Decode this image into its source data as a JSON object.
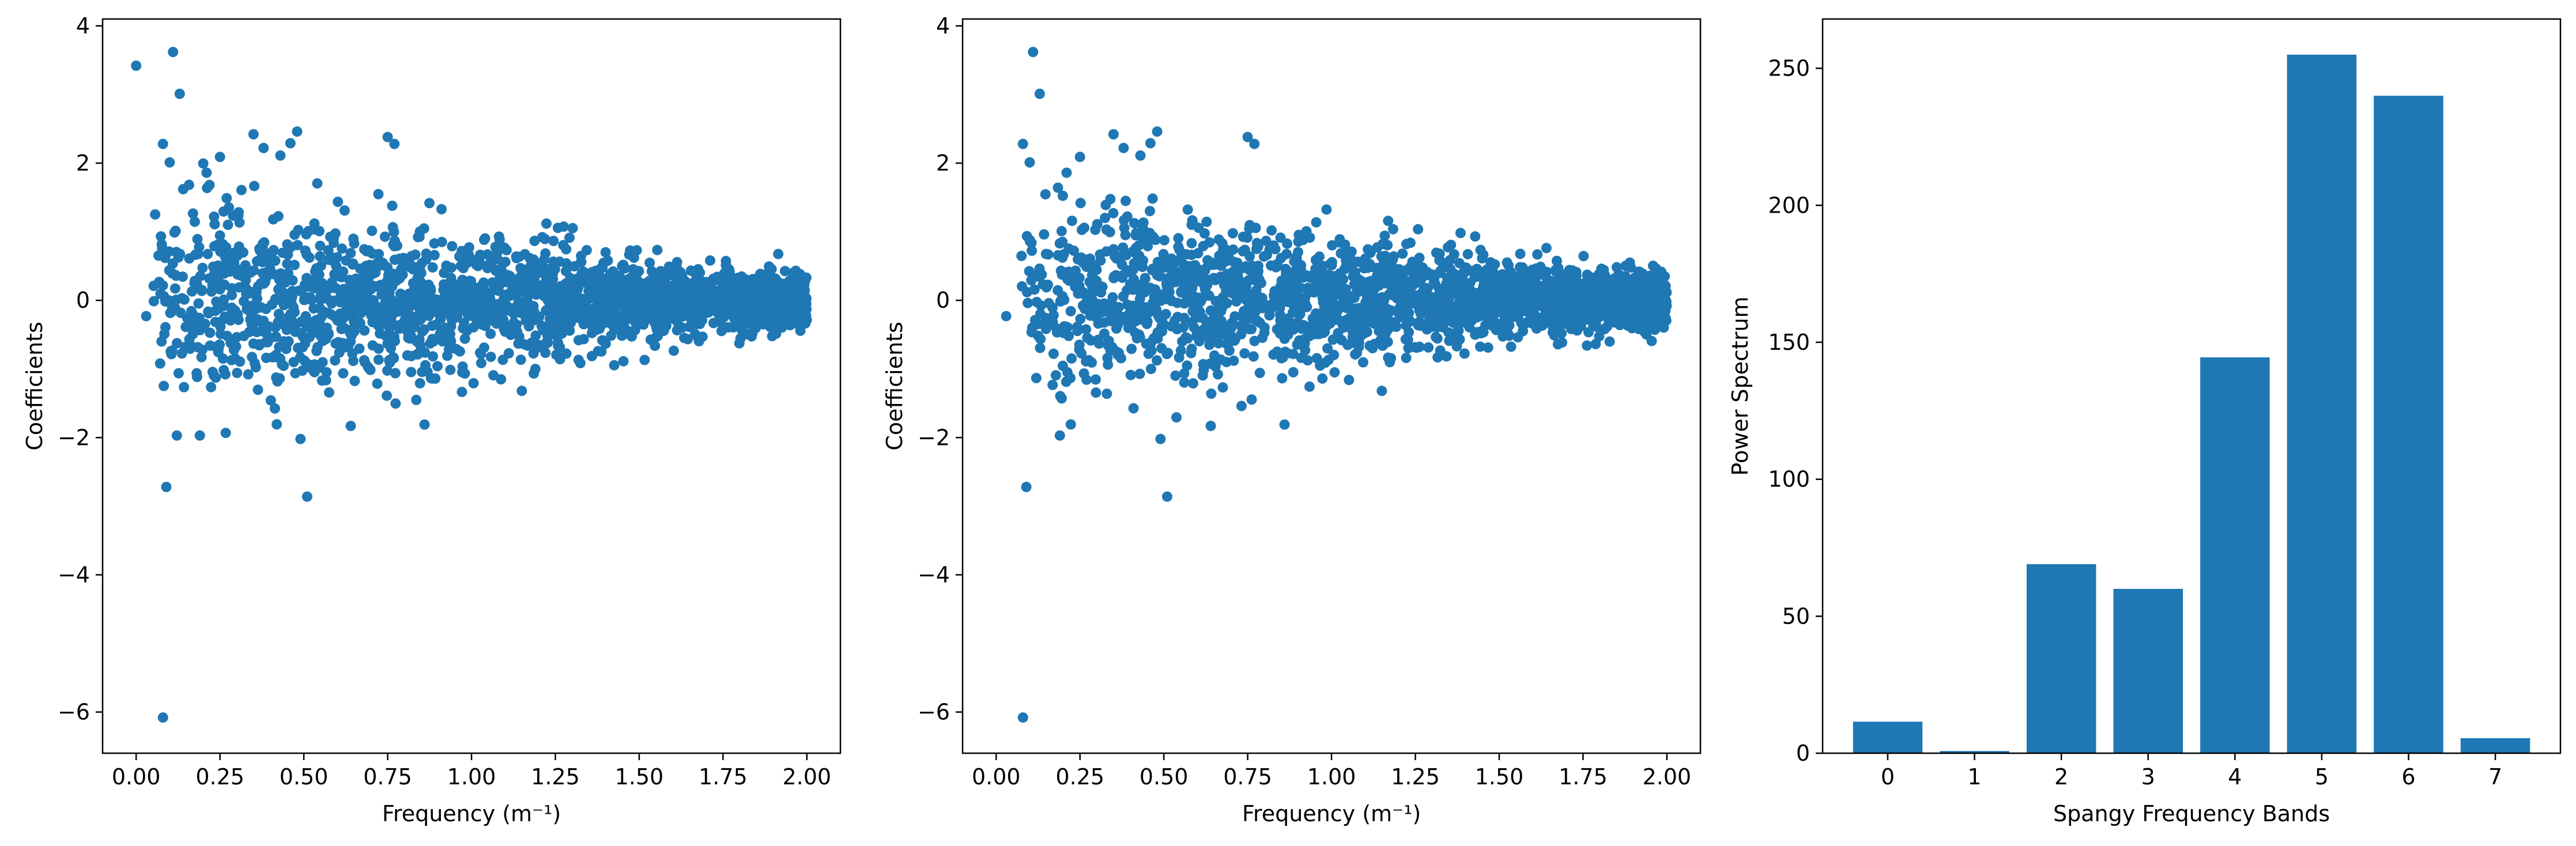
{
  "chart_data": [
    {
      "type": "scatter",
      "xlabel": "Frequency (m⁻¹)",
      "ylabel": "Coefficients",
      "xlim": [
        -0.1,
        2.1
      ],
      "ylim": [
        -6.6,
        4.1
      ],
      "xticks": [
        "0.00",
        "0.25",
        "0.50",
        "0.75",
        "1.00",
        "1.25",
        "1.50",
        "1.75",
        "2.00"
      ],
      "yticks": [
        "−6",
        "−4",
        "−2",
        "0",
        "2",
        "4"
      ],
      "color": "#1f77b4",
      "outliers": [
        [
          0.0,
          3.42
        ],
        [
          0.11,
          3.62
        ],
        [
          0.13,
          3.01
        ],
        [
          0.08,
          2.28
        ],
        [
          0.1,
          2.01
        ],
        [
          0.35,
          2.42
        ],
        [
          0.48,
          2.46
        ],
        [
          0.75,
          2.38
        ],
        [
          0.77,
          2.28
        ],
        [
          0.09,
          -2.72
        ],
        [
          0.51,
          -2.86
        ],
        [
          0.08,
          -6.08
        ],
        [
          0.38,
          2.22
        ],
        [
          0.43,
          2.11
        ],
        [
          0.21,
          1.86
        ],
        [
          0.03,
          -0.23
        ],
        [
          0.19,
          -1.97
        ],
        [
          0.64,
          -1.83
        ],
        [
          0.86,
          -1.81
        ],
        [
          0.49,
          -2.02
        ],
        [
          1.15,
          -1.32
        ],
        [
          0.25,
          2.09
        ],
        [
          0.46,
          2.29
        ]
      ],
      "trend": {
        "x_range": [
          0.0,
          2.0
        ],
        "spread_at_0.1": 1.6,
        "spread_at_2.0": 0.35,
        "point_count": 2000
      }
    },
    {
      "type": "scatter",
      "xlabel": "Frequency (m⁻¹)",
      "ylabel": "Coefficients",
      "xlim": [
        -0.1,
        2.1
      ],
      "ylim": [
        -6.6,
        4.1
      ],
      "xticks": [
        "0.00",
        "0.25",
        "0.50",
        "0.75",
        "1.00",
        "1.25",
        "1.50",
        "1.75",
        "2.00"
      ],
      "yticks": [
        "−6",
        "−4",
        "−2",
        "0",
        "2",
        "4"
      ],
      "color": "#1f77b4",
      "outliers": [
        [
          0.03,
          -0.23
        ],
        [
          0.11,
          3.62
        ],
        [
          0.13,
          3.01
        ],
        [
          0.08,
          2.28
        ],
        [
          0.1,
          2.01
        ],
        [
          0.35,
          2.42
        ],
        [
          0.48,
          2.46
        ],
        [
          0.75,
          2.38
        ],
        [
          0.77,
          2.28
        ],
        [
          0.09,
          -2.72
        ],
        [
          0.51,
          -2.86
        ],
        [
          0.08,
          -6.08
        ],
        [
          0.38,
          2.22
        ],
        [
          0.43,
          2.11
        ],
        [
          0.21,
          1.86
        ],
        [
          0.19,
          -1.97
        ],
        [
          0.64,
          -1.83
        ],
        [
          0.86,
          -1.81
        ],
        [
          0.49,
          -2.02
        ],
        [
          1.15,
          -1.32
        ],
        [
          0.25,
          2.09
        ],
        [
          0.46,
          2.29
        ]
      ],
      "trend": {
        "x_range": [
          0.02,
          2.0
        ],
        "spread_at_0.1": 1.6,
        "spread_at_2.0": 0.35,
        "point_count": 2000
      }
    },
    {
      "type": "bar",
      "xlabel": "Spangy Frequency Bands",
      "ylabel": "Power Spectrum",
      "categories": [
        "0",
        "1",
        "2",
        "3",
        "4",
        "5",
        "6",
        "7"
      ],
      "values": [
        11.5,
        0.8,
        69,
        60,
        144.5,
        255,
        240,
        5.5
      ],
      "xlim": [
        -0.75,
        7.75
      ],
      "ylim": [
        0,
        268
      ],
      "yticks": [
        "0",
        "50",
        "100",
        "150",
        "200",
        "250"
      ],
      "color": "#1f77b4"
    }
  ]
}
